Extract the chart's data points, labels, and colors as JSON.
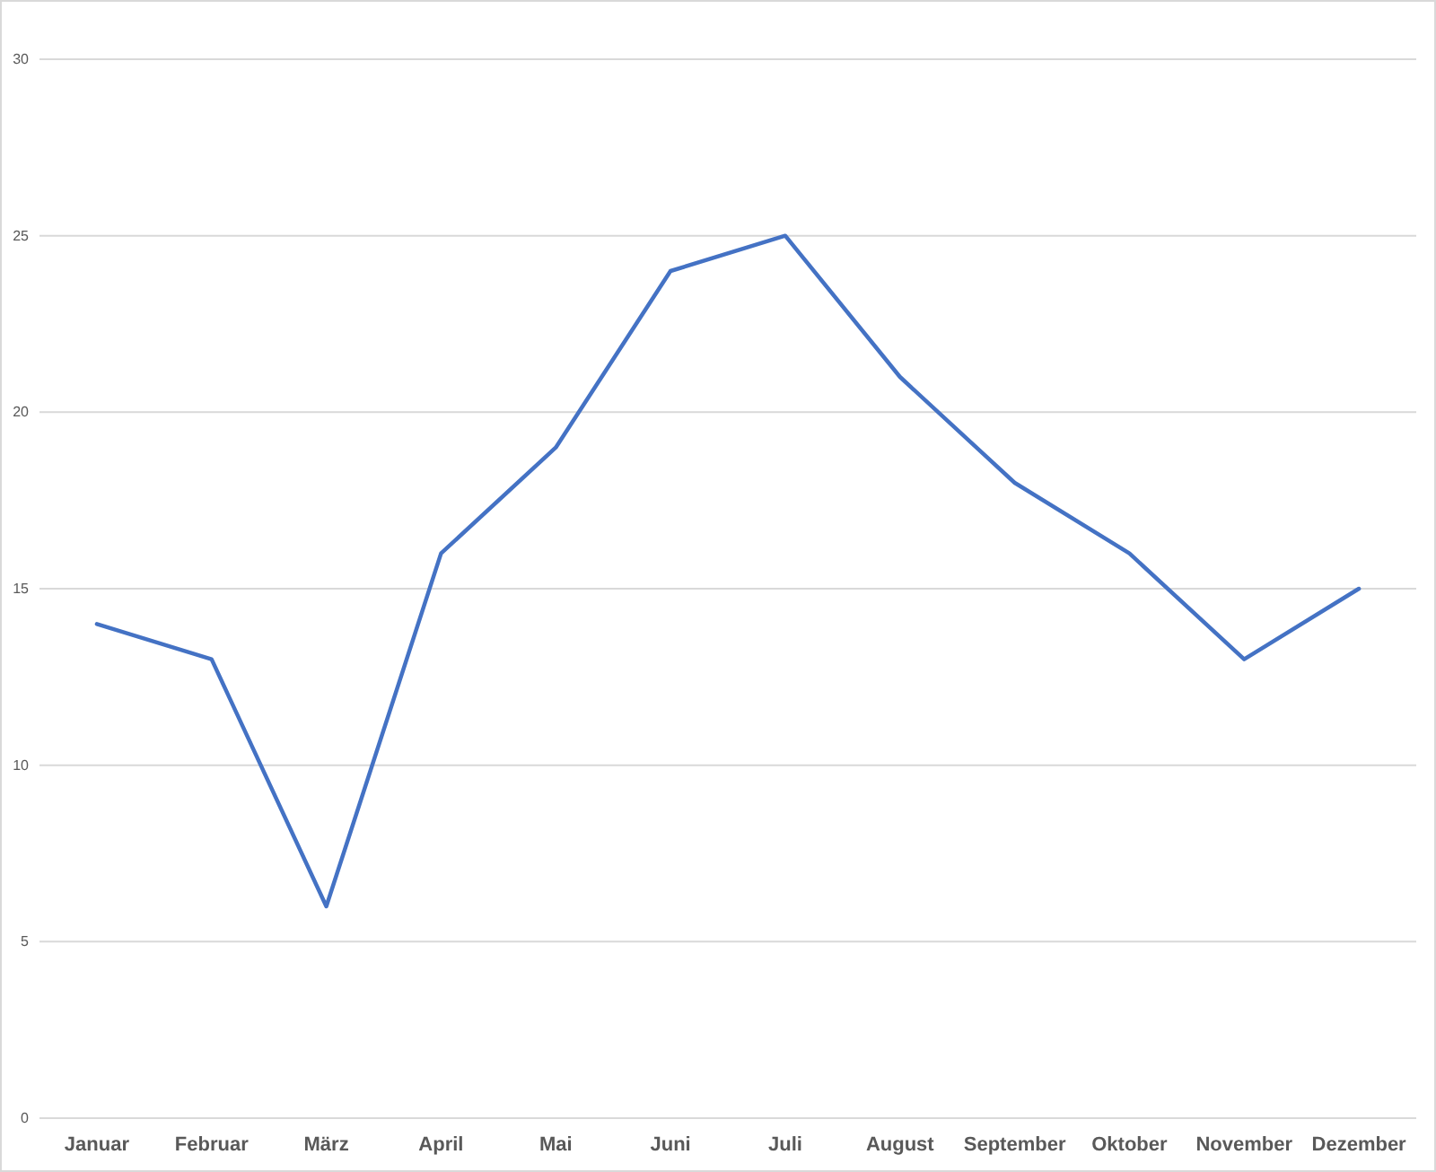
{
  "chart_data": {
    "type": "line",
    "categories": [
      "Januar",
      "Februar",
      "März",
      "April",
      "Mai",
      "Juni",
      "Juli",
      "August",
      "September",
      "Oktober",
      "November",
      "Dezember"
    ],
    "series": [
      {
        "color": "#4472c4",
        "values": [
          14,
          13,
          6,
          16,
          19,
          24,
          25,
          21,
          18,
          16,
          13,
          15
        ]
      }
    ],
    "ylim": [
      0,
      30
    ],
    "yticks": [
      0,
      5,
      10,
      15,
      20,
      25,
      30
    ],
    "grid": "y",
    "marker": "none",
    "line_style": "solid"
  }
}
